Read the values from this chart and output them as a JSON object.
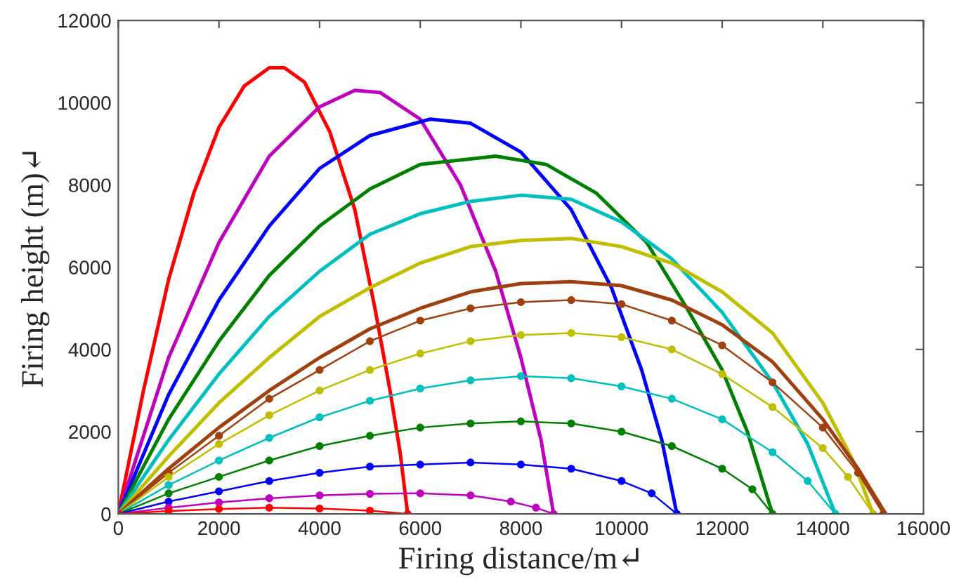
{
  "chart_data": {
    "type": "line",
    "xlabel": "Firing distance/m↵",
    "ylabel": "Firing height (m)↵",
    "xlim": [
      0,
      16000
    ],
    "ylim": [
      0,
      12000
    ],
    "xticks": [
      0,
      2000,
      4000,
      6000,
      8000,
      10000,
      12000,
      14000,
      16000
    ],
    "yticks": [
      0,
      2000,
      4000,
      6000,
      8000,
      10000,
      12000
    ],
    "grid": false,
    "line_style": "solid",
    "series": [
      {
        "color": "#ff0000",
        "marker": "none",
        "x": [
          0,
          500,
          1000,
          1500,
          2000,
          2500,
          3000,
          3300,
          3700,
          4200,
          4700,
          5100,
          5400,
          5600,
          5750
        ],
        "values": [
          0,
          3000,
          5700,
          7800,
          9400,
          10400,
          10850,
          10850,
          10500,
          9300,
          7400,
          5000,
          3000,
          1500,
          0
        ]
      },
      {
        "color": "#bf00bf",
        "marker": "none",
        "x": [
          0,
          1000,
          2000,
          3000,
          4000,
          4700,
          5200,
          6000,
          6800,
          7500,
          8000,
          8400,
          8650
        ],
        "values": [
          0,
          3800,
          6600,
          8700,
          9900,
          10300,
          10250,
          9600,
          8000,
          5900,
          3800,
          1800,
          0
        ]
      },
      {
        "color": "#0000ff",
        "marker": "none",
        "x": [
          0,
          1000,
          2000,
          3000,
          4000,
          5000,
          6200,
          7000,
          8000,
          9000,
          9800,
          10400,
          10800,
          11100
        ],
        "values": [
          0,
          2900,
          5200,
          7000,
          8400,
          9200,
          9600,
          9500,
          8800,
          7400,
          5500,
          3500,
          1800,
          0
        ]
      },
      {
        "color": "#008000",
        "marker": "none",
        "x": [
          0,
          1000,
          2000,
          3000,
          4000,
          5000,
          6000,
          7500,
          8500,
          9500,
          10500,
          11300,
          12000,
          12500,
          13000
        ],
        "values": [
          0,
          2300,
          4200,
          5800,
          7000,
          7900,
          8500,
          8700,
          8500,
          7800,
          6600,
          5000,
          3500,
          2000,
          0
        ]
      },
      {
        "color": "#00bfbf",
        "marker": "none",
        "x": [
          0,
          1000,
          2000,
          3000,
          4000,
          5000,
          6000,
          7000,
          8000,
          9000,
          10000,
          11000,
          12000,
          13000,
          13700,
          14250
        ],
        "values": [
          0,
          1800,
          3400,
          4800,
          5900,
          6800,
          7300,
          7600,
          7750,
          7650,
          7100,
          6200,
          4900,
          3200,
          1700,
          0
        ]
      },
      {
        "color": "#bfbf00",
        "marker": "none",
        "x": [
          0,
          1000,
          2000,
          3000,
          4000,
          5000,
          6000,
          7000,
          8000,
          9000,
          10000,
          11000,
          12000,
          13000,
          14000,
          14600,
          15000
        ],
        "values": [
          0,
          1400,
          2700,
          3800,
          4800,
          5500,
          6100,
          6500,
          6650,
          6700,
          6500,
          6100,
          5400,
          4400,
          2700,
          1300,
          0
        ]
      },
      {
        "color": "#a0400f",
        "marker": "none",
        "x": [
          0,
          1000,
          2000,
          3000,
          4000,
          5000,
          6000,
          7000,
          8000,
          9000,
          10000,
          11000,
          12000,
          13000,
          14000,
          14700,
          15250
        ],
        "values": [
          0,
          1100,
          2100,
          3000,
          3800,
          4500,
          5000,
          5400,
          5600,
          5650,
          5550,
          5200,
          4600,
          3700,
          2300,
          1100,
          0
        ]
      },
      {
        "color": "#a0400f",
        "marker": "circle",
        "x": [
          0,
          1000,
          2000,
          3000,
          4000,
          5000,
          6000,
          7000,
          8000,
          9000,
          10000,
          11000,
          12000,
          13000,
          14000,
          14700,
          15200
        ],
        "values": [
          0,
          1000,
          1900,
          2800,
          3500,
          4200,
          4700,
          5000,
          5150,
          5200,
          5100,
          4700,
          4100,
          3200,
          2100,
          1000,
          0
        ]
      },
      {
        "color": "#bfbf00",
        "marker": "circle",
        "x": [
          0,
          1000,
          2000,
          3000,
          4000,
          5000,
          6000,
          7000,
          8000,
          9000,
          10000,
          11000,
          12000,
          13000,
          14000,
          14500,
          15000
        ],
        "values": [
          0,
          900,
          1700,
          2400,
          3000,
          3500,
          3900,
          4200,
          4350,
          4400,
          4300,
          4000,
          3400,
          2600,
          1600,
          900,
          0
        ]
      },
      {
        "color": "#00bfbf",
        "marker": "circle",
        "x": [
          0,
          1000,
          2000,
          3000,
          4000,
          5000,
          6000,
          7000,
          8000,
          9000,
          10000,
          11000,
          12000,
          13000,
          13700,
          14250
        ],
        "values": [
          0,
          700,
          1300,
          1850,
          2350,
          2750,
          3050,
          3250,
          3350,
          3300,
          3100,
          2800,
          2300,
          1500,
          800,
          0
        ]
      },
      {
        "color": "#008000",
        "marker": "circle",
        "x": [
          0,
          1000,
          2000,
          3000,
          4000,
          5000,
          6000,
          7000,
          8000,
          9000,
          10000,
          11000,
          12000,
          12600,
          13000
        ],
        "values": [
          0,
          500,
          900,
          1300,
          1650,
          1900,
          2100,
          2200,
          2250,
          2200,
          2000,
          1650,
          1100,
          600,
          0
        ]
      },
      {
        "color": "#0000ff",
        "marker": "circle",
        "x": [
          0,
          1000,
          2000,
          3000,
          4000,
          5000,
          6000,
          7000,
          8000,
          9000,
          10000,
          10600,
          11100
        ],
        "values": [
          0,
          300,
          550,
          800,
          1000,
          1150,
          1200,
          1250,
          1200,
          1100,
          800,
          500,
          0
        ]
      },
      {
        "color": "#bf00bf",
        "marker": "circle",
        "x": [
          0,
          1000,
          2000,
          3000,
          4000,
          5000,
          6000,
          7000,
          7800,
          8300,
          8650
        ],
        "values": [
          0,
          150,
          280,
          380,
          450,
          490,
          500,
          450,
          300,
          150,
          0
        ]
      },
      {
        "color": "#ff0000",
        "marker": "circle",
        "x": [
          0,
          1000,
          2000,
          3000,
          4000,
          5000,
          5750
        ],
        "values": [
          0,
          70,
          120,
          150,
          130,
          80,
          0
        ]
      }
    ]
  }
}
